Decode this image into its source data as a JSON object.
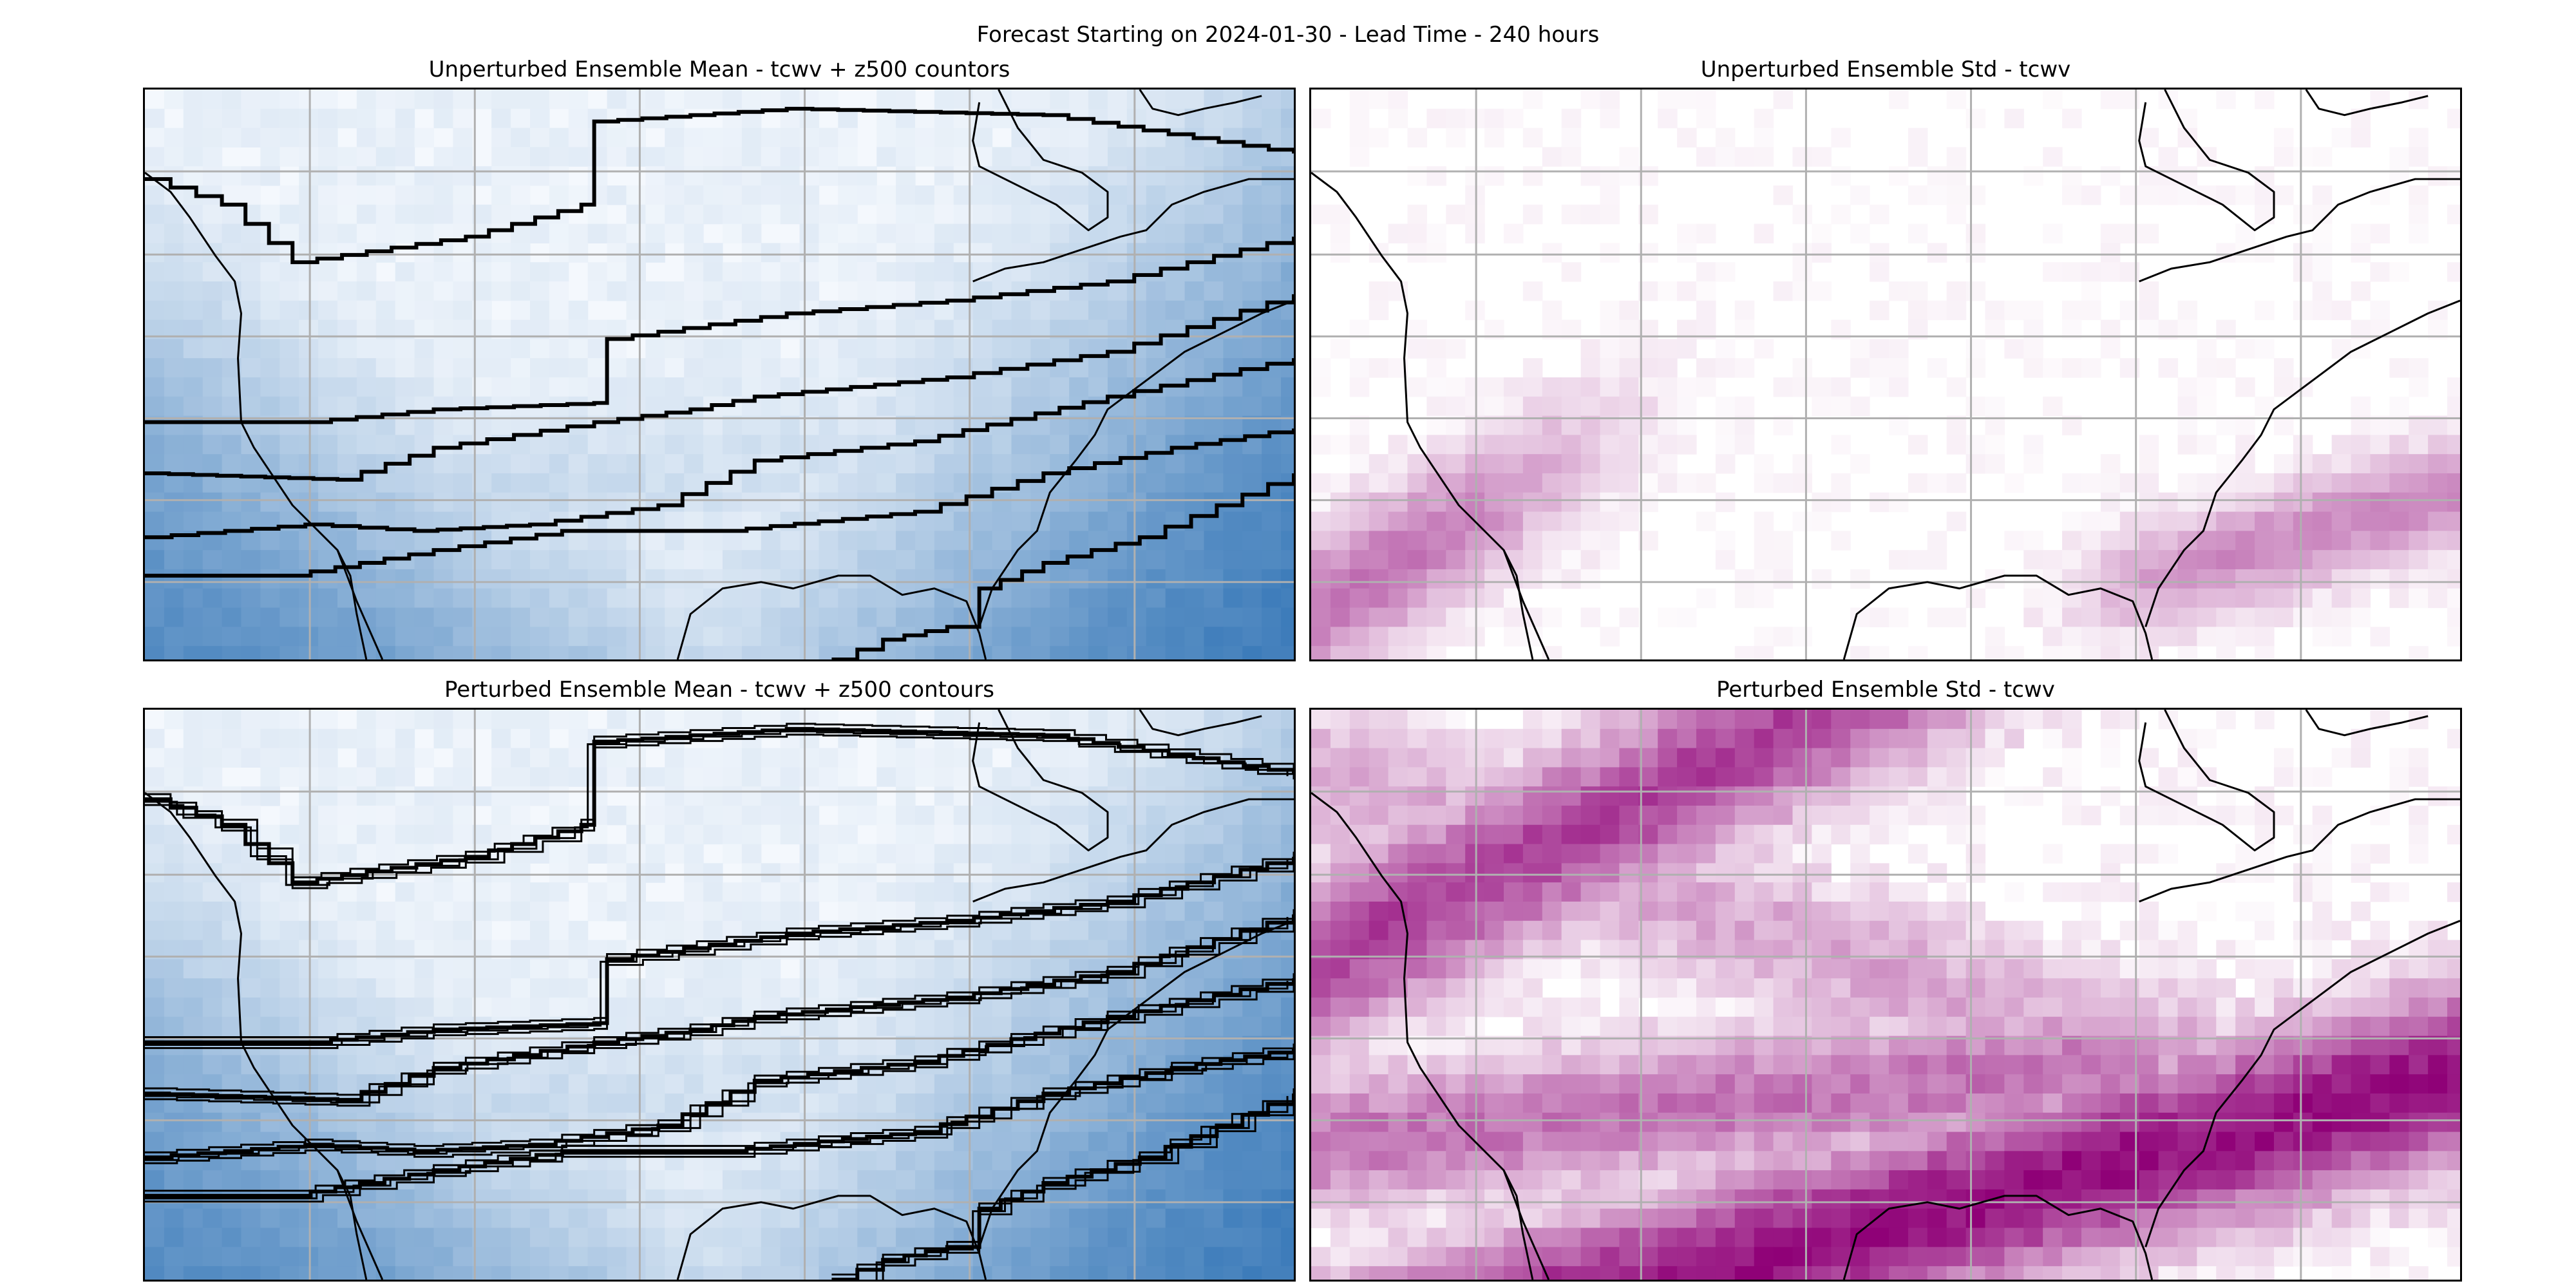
{
  "figure": {
    "suptitle": "Forecast Starting on 2024-01-30 - Lead Time - 240 hours"
  },
  "chart_data": [
    {
      "type": "heatmap",
      "title": "Unperturbed Ensemble Mean - tcwv + z500 countors",
      "colormap": "Blues",
      "colors": {
        "low": "#f4f8fd",
        "high": "#1a64ad"
      },
      "grid": true,
      "overlay": "z500 contours (black), coastlines",
      "contour_count": 6
    },
    {
      "type": "heatmap",
      "title": "Unperturbed Ensemble Std - tcwv",
      "colormap": "RdPu",
      "colors": {
        "low": "#ffffff",
        "high": "#8f0177"
      },
      "grid": true,
      "overlay": "coastlines"
    },
    {
      "type": "heatmap",
      "title": "Perturbed Ensemble Mean - tcwv + z500 contours",
      "colormap": "Blues",
      "colors": {
        "low": "#f4f8fd",
        "high": "#1a64ad"
      },
      "grid": true,
      "overlay": "z500 ensemble contours (black), coastlines",
      "contour_count": 6
    },
    {
      "type": "heatmap",
      "title": "Perturbed Ensemble Std - tcwv",
      "colormap": "RdPu",
      "colors": {
        "low": "#ffffff",
        "high": "#8f0177"
      },
      "grid": true,
      "overlay": "coastlines"
    }
  ]
}
